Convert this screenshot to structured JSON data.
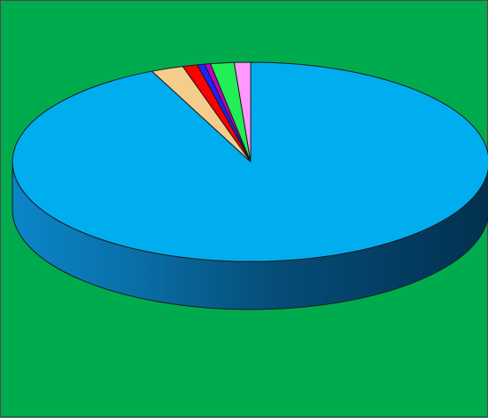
{
  "chart_data": {
    "type": "pie",
    "style": "3d",
    "values": [
      93.2,
      2.2,
      1.0,
      0.5,
      0.4,
      1.6,
      1.1
    ],
    "colors": [
      "#00aeef",
      "#f4cc8c",
      "#ff0000",
      "#2222ff",
      "#c000c0",
      "#22ee55",
      "#ff99ff"
    ],
    "background": "#00ab4e",
    "title": "",
    "legend": "none"
  }
}
